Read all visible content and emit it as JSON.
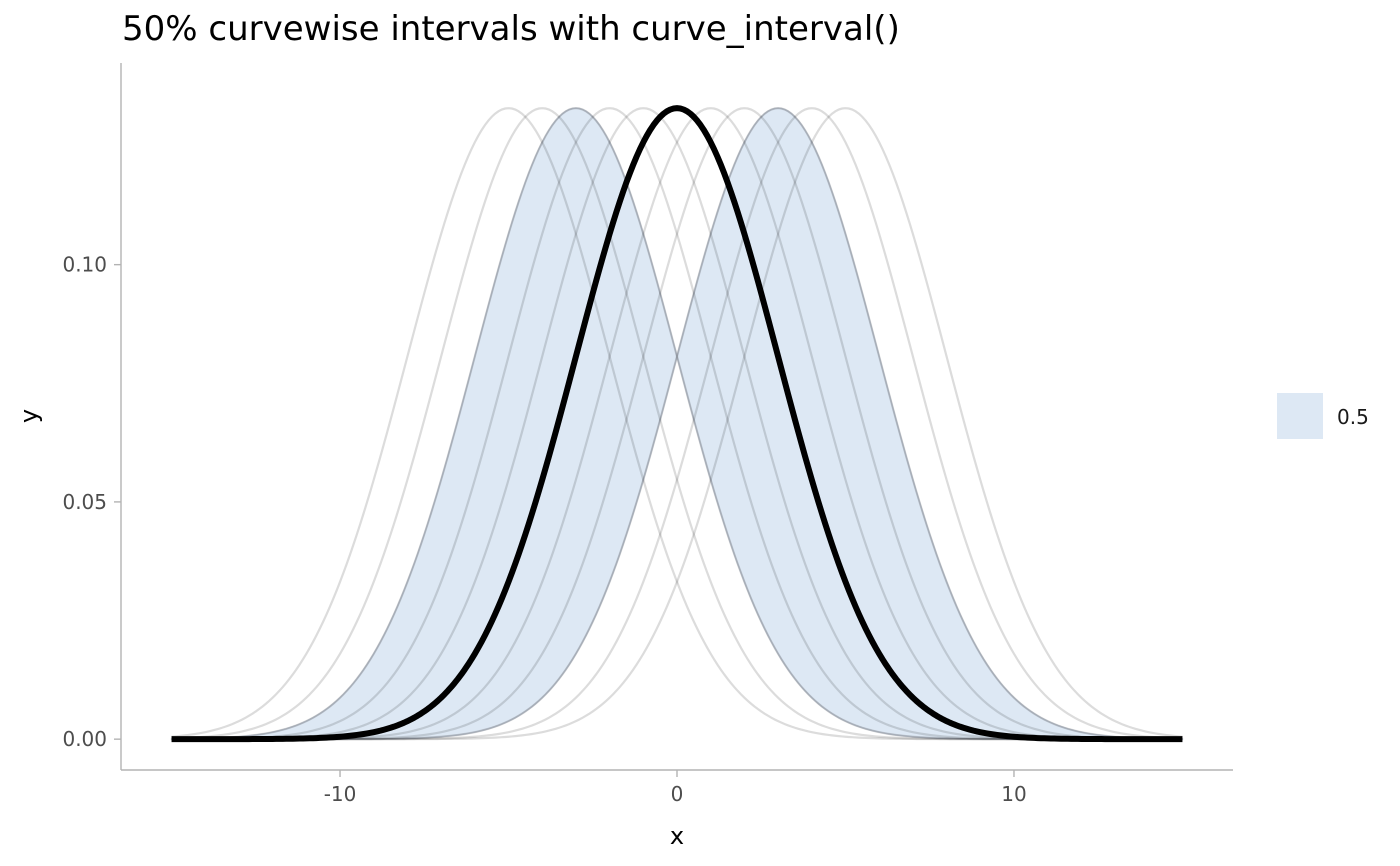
{
  "chart_data": {
    "type": "line",
    "title": "50% curvewise intervals with curve_interval()",
    "xlabel": "x",
    "ylabel": "y",
    "xlim": [
      -16.5,
      16.5
    ],
    "ylim": [
      -0.0065,
      0.1425
    ],
    "x_ticks": [
      -10,
      0,
      10
    ],
    "x_tick_labels": [
      "-10",
      "0",
      "10"
    ],
    "y_ticks": [
      0,
      0.05,
      0.1
    ],
    "y_tick_labels": [
      "0.00",
      "0.05",
      "0.10"
    ],
    "grid": false,
    "x_range": [
      -15,
      15
    ],
    "curve_sd": 3,
    "curve_means": [
      -5,
      -4,
      -3,
      -2,
      -1,
      0,
      1,
      2,
      3,
      4,
      5
    ],
    "curve_color": "#d6d6d6",
    "interval": {
      "level": 0.5,
      "lower_mean": -3,
      "upper_mean": 3,
      "fill_color": "#dde8f4",
      "edge_color": "#c2cad6"
    },
    "median_curve": {
      "mean": 0,
      "color": "#000000"
    },
    "legend": {
      "position": "right",
      "entries": [
        {
          "label": "0.5",
          "color": "#dde8f4"
        }
      ]
    }
  }
}
